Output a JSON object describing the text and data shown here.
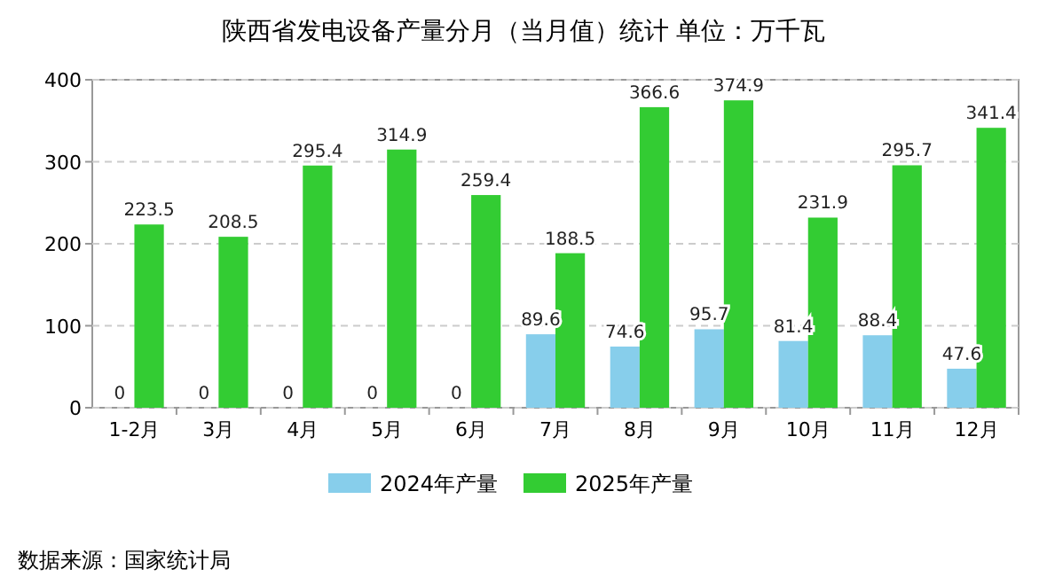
{
  "chart_data": {
    "type": "bar",
    "title": "陕西省发电设备产量分月（当月值）统计  单位：万千瓦",
    "categories": [
      "1-2月",
      "3月",
      "4月",
      "5月",
      "6月",
      "7月",
      "8月",
      "9月",
      "10月",
      "11月",
      "12月"
    ],
    "series": [
      {
        "name": "2024年产量",
        "color": "#87ceeb",
        "values": [
          0,
          0,
          0,
          0,
          0,
          89.6,
          74.6,
          95.7,
          81.4,
          88.4,
          47.6
        ]
      },
      {
        "name": "2025年产量",
        "color": "#33cc33",
        "values": [
          223.5,
          208.5,
          295.4,
          314.9,
          259.4,
          188.5,
          366.6,
          374.9,
          231.9,
          295.7,
          341.4
        ]
      }
    ],
    "ylim": [
      0,
      400
    ],
    "yticks": [
      0,
      100,
      200,
      300,
      400
    ],
    "grid": "y",
    "legend": "bottom",
    "data_labels": true,
    "annotations": [
      "数据来源：国家统计局"
    ]
  }
}
